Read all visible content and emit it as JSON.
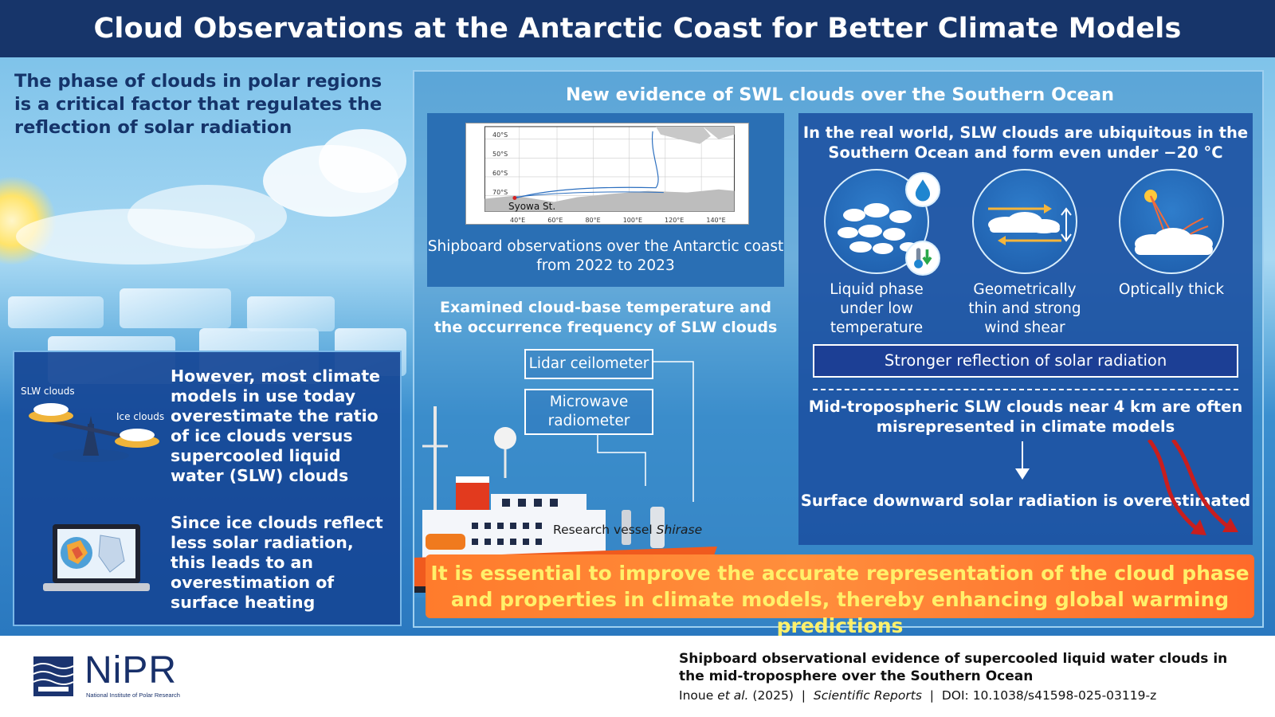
{
  "header": {
    "title": "Cloud Observations at the Antarctic Coast for Better Climate Models"
  },
  "intro": {
    "text": "The phase of clouds in polar regions is a critical factor that regulates the reflection of solar radiation"
  },
  "left_panel": {
    "scale_label_left": "SLW clouds",
    "scale_label_right": "Ice clouds",
    "text1": "However, most climate models in use today overestimate the ratio of ice clouds versus supercooled liquid water (SLW) clouds",
    "text2": "Since ice clouds reflect less solar radiation, this leads to an overestimation of surface heating"
  },
  "main_panel": {
    "title": "New evidence of SWL clouds over the Southern Ocean",
    "map": {
      "station_label": "Syowa St.",
      "lat_ticks": [
        "40°S",
        "50°S",
        "60°S",
        "70°S"
      ],
      "lon_ticks": [
        "40°E",
        "60°E",
        "80°E",
        "100°E",
        "120°E",
        "140°E"
      ],
      "caption": "Shipboard observations over the Antarctic coast from 2022 to 2023"
    },
    "examined": "Examined cloud-base temperature and the occurrence frequency of SLW clouds",
    "instrument1": "Lidar ceilometer",
    "instrument2": "Microwave radiometer",
    "vessel_prefix": "Research vessel ",
    "vessel_name": "Shirase",
    "right": {
      "heading": "In the real world, SLW clouds are ubiquitous in the Southern Ocean and form even under −20 °C",
      "props": [
        {
          "label": "Liquid phase under low temperature",
          "icon": "cloud-droplet-icon"
        },
        {
          "label": "Geometrically thin and strong wind shear",
          "icon": "wind-shear-icon"
        },
        {
          "label": "Optically thick",
          "icon": "sun-reflection-icon"
        }
      ],
      "reflection": "Stronger reflection of solar radiation",
      "mid_text": "Mid-tropospheric SLW clouds near 4 km are often misrepresented in climate models",
      "surface_text": "Surface downward solar radiation is overestimated"
    },
    "conclusion": "It is essential to improve the accurate representation of the cloud phase and properties in climate models, thereby enhancing global warming predictions"
  },
  "footer": {
    "logo": "NiPR",
    "logo_sub": "National Institute of Polar Research",
    "paper_title": "Shipboard observational evidence of supercooled liquid water clouds in the mid-troposphere over the Southern Ocean",
    "authors": "Inoue",
    "etal": "et al.",
    "year": " (2025)  |  ",
    "journal": "Scientific Reports",
    "doi": "  |  DOI: 10.1038/s41598-025-03119-z"
  },
  "colors": {
    "header_bg": "#17356a",
    "panel_blue": "#1b50a0",
    "conclusion_orange": "#ff7b2c",
    "conclusion_text": "#fff06a",
    "ship_hull": "#f05a1e"
  }
}
